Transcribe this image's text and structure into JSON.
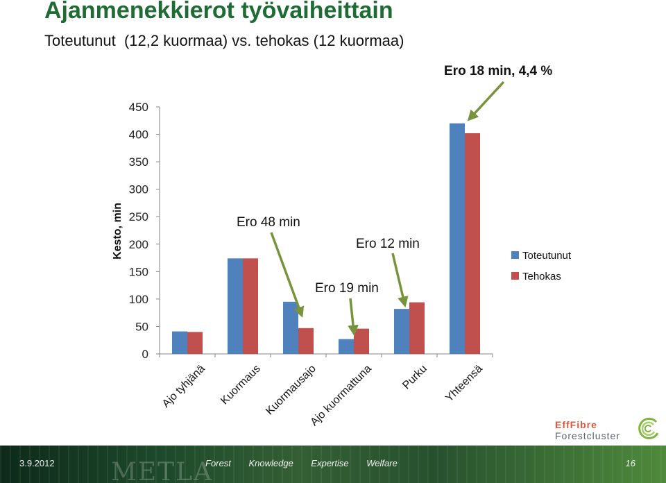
{
  "slide": {
    "title": "Ajanmenekkierot työvaiheittain",
    "subtitle": "Toteutunut  (12,2 kuormaa) vs. tehokas (12 kuormaa)"
  },
  "chart_data": {
    "type": "bar",
    "categories": [
      "Ajo tyhjänä",
      "Kuormaus",
      "Kuormausajo",
      "Ajo kuormattuna",
      "Purku",
      "Yhteensä"
    ],
    "series": [
      {
        "name": "Toteutunut",
        "color": "#4f81bd",
        "values": [
          41,
          174,
          95,
          27,
          82,
          420
        ]
      },
      {
        "name": "Tehokas",
        "color": "#c0504d",
        "values": [
          40,
          174,
          47,
          46,
          94,
          402
        ]
      }
    ],
    "ylabel": "Kesto, min",
    "ylim": [
      0,
      450
    ],
    "yticks": [
      0,
      50,
      100,
      150,
      200,
      250,
      300,
      350,
      400,
      450
    ],
    "legend_position": "right",
    "gridlines": false,
    "annotations": [
      {
        "text": "Ero 18 min, 4,4 %",
        "category": "Yhteensä",
        "bold": true
      },
      {
        "text": "Ero 48 min",
        "category": "Kuormausajo",
        "bold": false
      },
      {
        "text": "Ero 12 min",
        "category": "Purku",
        "bold": false
      },
      {
        "text": "Ero 19 min",
        "category": "Ajo kuormattuna",
        "bold": false
      }
    ],
    "arrow_color": "#77933c"
  },
  "footer": {
    "date": "3.9.2012",
    "watermark": "METLA",
    "tagline": [
      "Forest",
      "Knowledge",
      "Expertise",
      "Welfare"
    ],
    "page": "16"
  },
  "brand": {
    "line1": "EffFibre",
    "line2": "Forestcluster",
    "accent": "#e2563b",
    "logo_color": "#7fb63f"
  }
}
